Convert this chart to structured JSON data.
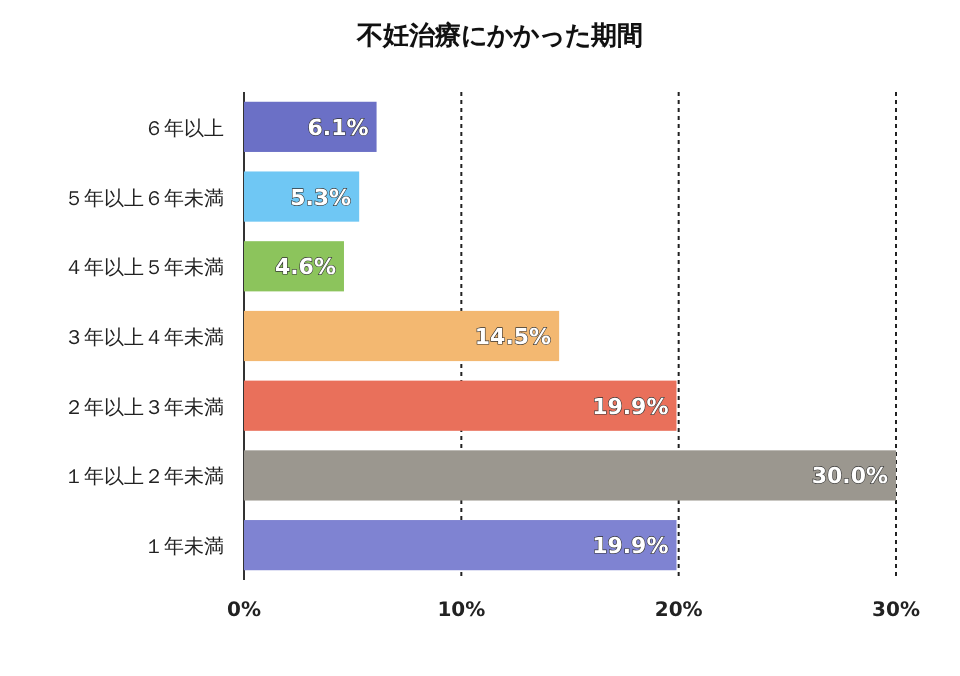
{
  "chart_data": {
    "type": "bar",
    "orientation": "horizontal",
    "title": "不妊治療にかかった期間",
    "categories": [
      "６年以上",
      "５年以上６年未満",
      "４年以上５年未満",
      "３年以上４年未満",
      "２年以上３年未満",
      "１年以上２年未満",
      "１年未満"
    ],
    "values": [
      6.1,
      5.3,
      4.6,
      14.5,
      19.9,
      30.0,
      19.9
    ],
    "colors": [
      "#6b70c6",
      "#6fc7f4",
      "#8cc45c",
      "#f3b871",
      "#e9705b",
      "#9b978f",
      "#7f83d2"
    ],
    "value_labels": [
      "6.1%",
      "5.3%",
      "4.6%",
      "14.5%",
      "19.9%",
      "30.0%",
      "19.9%"
    ],
    "xlim": [
      0,
      30
    ],
    "xticks": [
      {
        "value": 0,
        "label": "0%"
      },
      {
        "value": 10,
        "label": "10%"
      },
      {
        "value": 20,
        "label": "20%"
      },
      {
        "value": 30,
        "label": "30%"
      }
    ],
    "grid": "x"
  }
}
